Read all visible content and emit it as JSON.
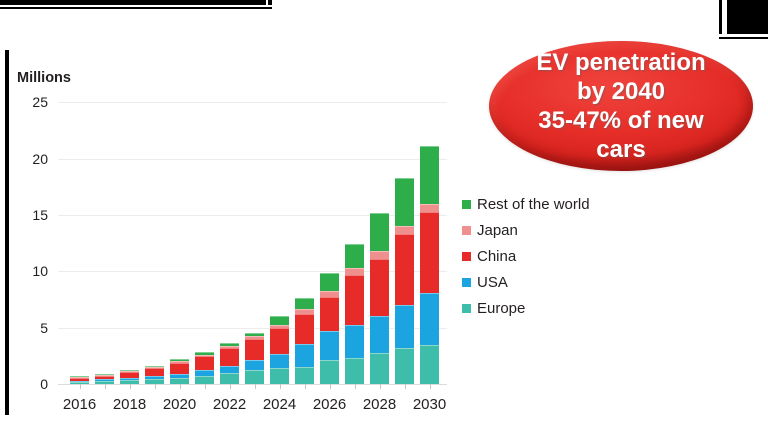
{
  "chart": {
    "units_label": "Millions",
    "y_ticks": [
      0,
      5,
      10,
      15,
      20,
      25
    ],
    "x_tick_labels": [
      "2016",
      "2018",
      "2020",
      "2022",
      "2024",
      "2026",
      "2028",
      "2030"
    ]
  },
  "chart_data": {
    "type": "bar",
    "stacked": true,
    "title": "",
    "xlabel": "",
    "ylabel": "Millions",
    "ylim": [
      0,
      25
    ],
    "grid": "horizontal",
    "legend_position": "right",
    "categories": [
      "2016",
      "2017",
      "2018",
      "2019",
      "2020",
      "2021",
      "2022",
      "2023",
      "2024",
      "2025",
      "2026",
      "2027",
      "2028",
      "2029",
      "2030"
    ],
    "series": [
      {
        "name": "Europe",
        "color": "#3ebdaa",
        "values": [
          0.25,
          0.3,
          0.38,
          0.45,
          0.53,
          0.74,
          0.98,
          1.27,
          1.45,
          1.5,
          2.16,
          2.31,
          2.75,
          3.2,
          3.5
        ]
      },
      {
        "name": "USA",
        "color": "#1ca4e0",
        "values": [
          0.12,
          0.15,
          0.2,
          0.28,
          0.38,
          0.53,
          0.65,
          0.89,
          1.17,
          2.07,
          2.51,
          2.95,
          3.25,
          3.8,
          4.6
        ]
      },
      {
        "name": "China",
        "color": "#e62b28",
        "values": [
          0.25,
          0.32,
          0.5,
          0.7,
          0.98,
          1.18,
          1.6,
          1.83,
          2.33,
          2.65,
          3.02,
          4.38,
          5.1,
          6.3,
          7.15
        ]
      },
      {
        "name": "Japan",
        "color": "#f0908e",
        "values": [
          0.03,
          0.04,
          0.05,
          0.07,
          0.15,
          0.15,
          0.18,
          0.24,
          0.32,
          0.44,
          0.53,
          0.65,
          0.7,
          0.7,
          0.68
        ]
      },
      {
        "name": "Rest of the world",
        "color": "#2ead4b",
        "values": [
          0.03,
          0.05,
          0.08,
          0.1,
          0.18,
          0.2,
          0.27,
          0.33,
          0.78,
          0.97,
          1.63,
          2.13,
          3.4,
          4.25,
          5.17
        ]
      }
    ],
    "totals": [
      0.68,
      0.86,
      1.21,
      1.6,
      2.22,
      2.8,
      3.68,
      4.56,
      6.05,
      7.63,
      9.85,
      12.42,
      15.2,
      18.25,
      21.1
    ],
    "legend_order": [
      "Rest of the world",
      "Japan",
      "China",
      "USA",
      "Europe"
    ]
  },
  "badge": {
    "text": "EV penetration\nby 2040\n35-47% of new\ncars",
    "bg_color": "#e62e29",
    "text_color": "#ffffff"
  }
}
